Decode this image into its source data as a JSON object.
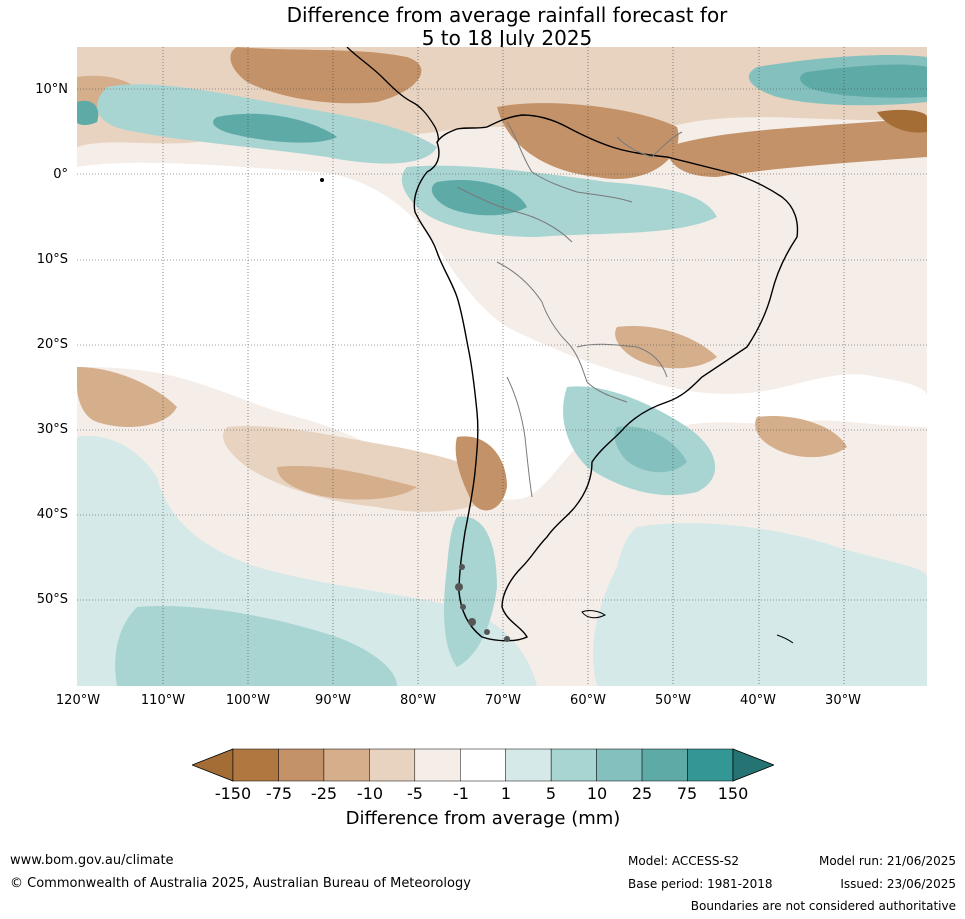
{
  "title_line1": "Difference from average rainfall forecast for",
  "title_line2": "5 to 18 July 2025",
  "lat_labels": [
    "10°N",
    "0°",
    "10°S",
    "20°S",
    "30°S",
    "40°S",
    "50°S"
  ],
  "lon_labels": [
    "120°W",
    "110°W",
    "100°W",
    "90°W",
    "80°W",
    "70°W",
    "60°W",
    "50°W",
    "40°W",
    "30°W"
  ],
  "colorbar": {
    "ticks": [
      "-150",
      "-75",
      "-25",
      "-10",
      "-5",
      "-1",
      "1",
      "5",
      "10",
      "25",
      "75",
      "150"
    ],
    "colors": [
      "#a36d35",
      "#b07840",
      "#c39268",
      "#d5ae8c",
      "#e8d3c0",
      "#f5ede8",
      "#ffffff",
      "#d4e9e8",
      "#a8d4d2",
      "#84c1be",
      "#5eaaa7",
      "#329795",
      "#257473"
    ],
    "label": "Difference from average (mm)"
  },
  "footer": {
    "url": "www.bom.gov.au/climate",
    "copyright": "© Commonwealth of Australia 2025, Australian Bureau of Meteorology",
    "model": "Model: ACCESS-S2",
    "model_run": "Model run: 21/06/2025",
    "base_period": "Base period: 1981-2018",
    "issued": "Issued: 23/06/2025",
    "boundaries": "Boundaries are not considered authoritative"
  }
}
